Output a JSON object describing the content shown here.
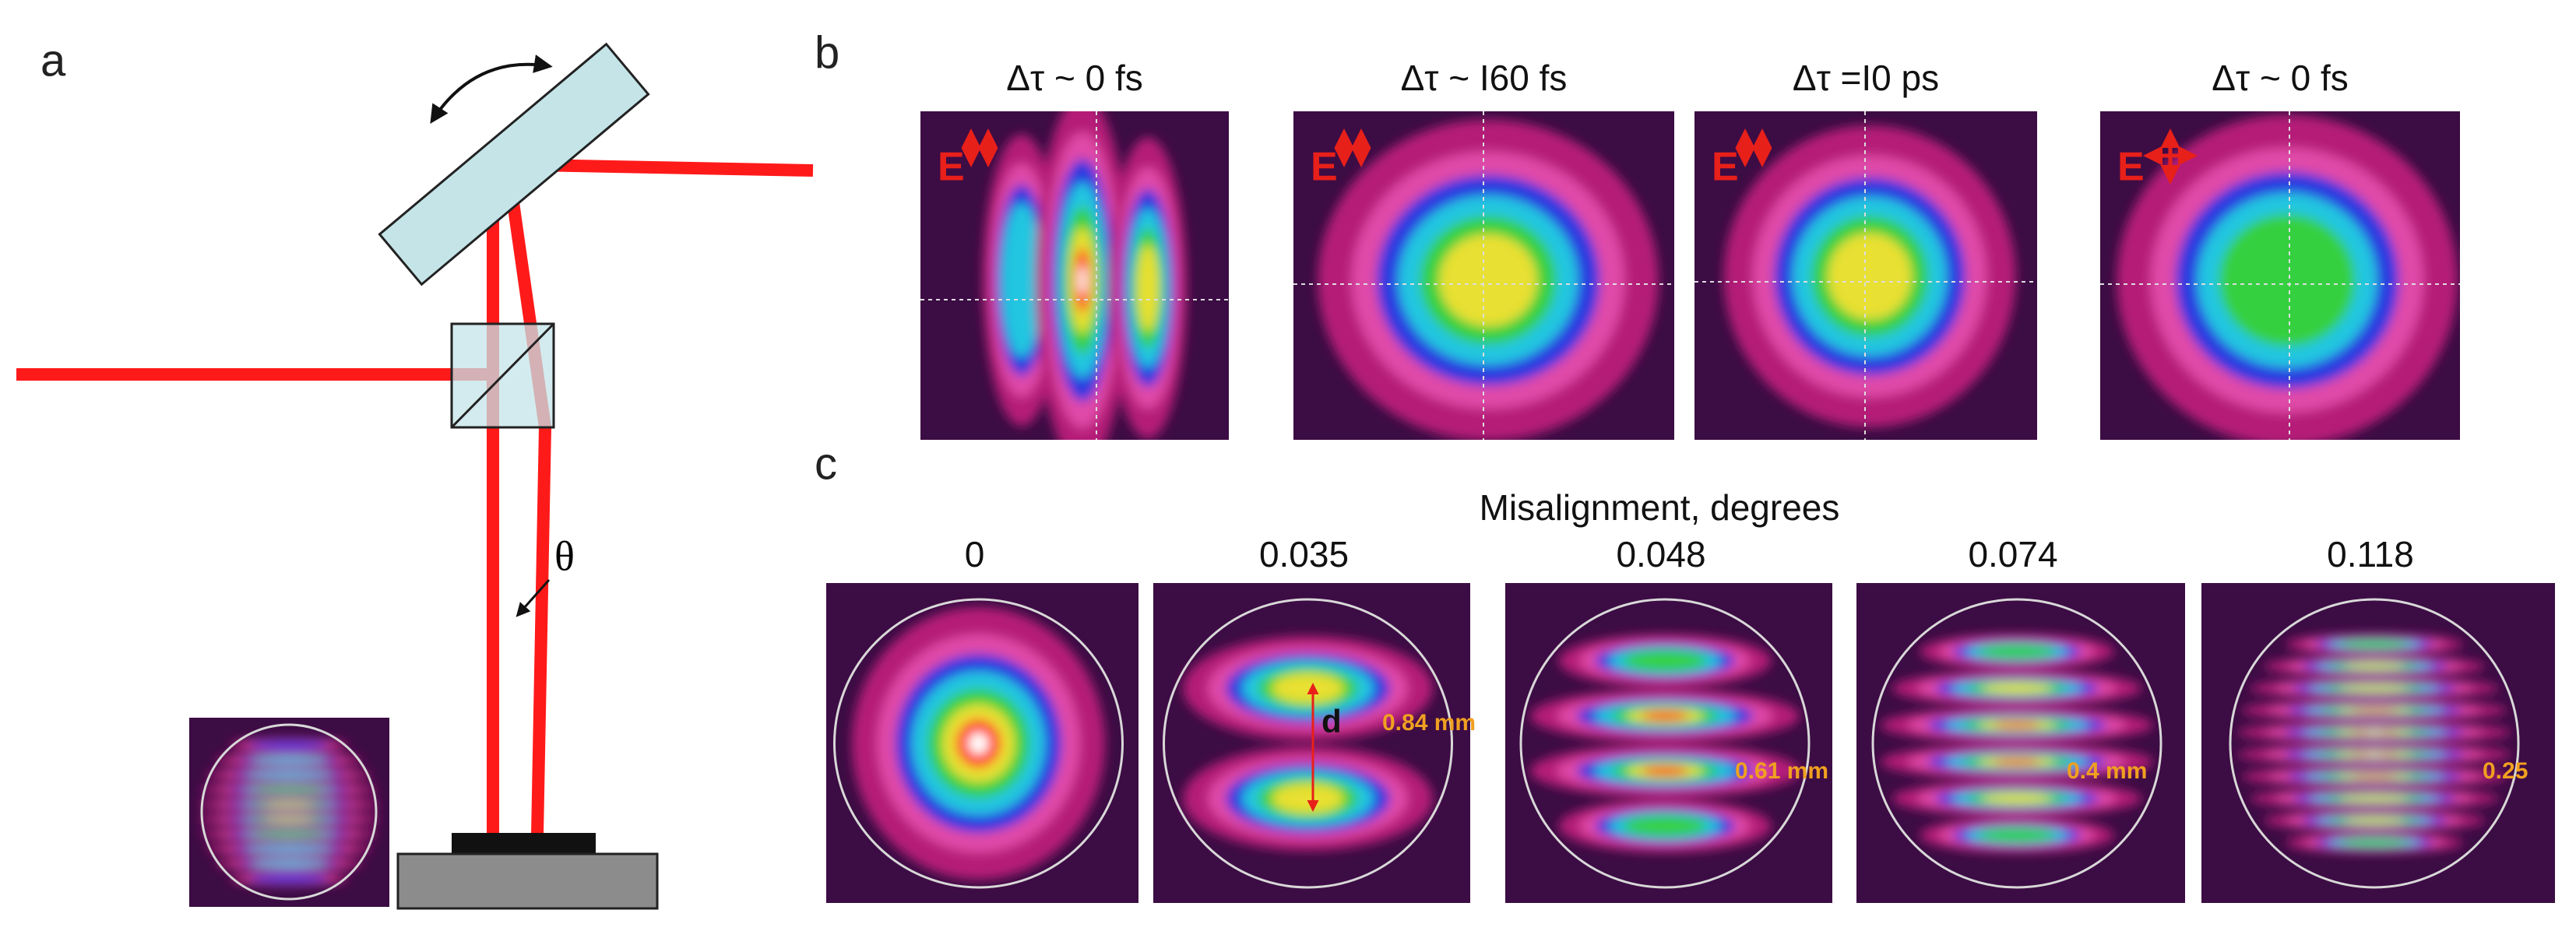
{
  "panels": {
    "a": {
      "label": "a",
      "angle": "θ"
    },
    "b": {
      "label": "b",
      "images": [
        {
          "title": "Δτ ~ 0 fs",
          "field": "E"
        },
        {
          "title": "Δτ ~ I60 fs",
          "field": "E"
        },
        {
          "title": "Δτ =I0 ps",
          "field": "E"
        },
        {
          "title": "Δτ ~ 0 fs",
          "field": "E"
        }
      ]
    },
    "c": {
      "label": "c",
      "title": "Misalignment, degrees",
      "images": [
        {
          "title": "0"
        },
        {
          "title": "0.035",
          "annotation": "0.84 mm",
          "marker": "d"
        },
        {
          "title": "0.048",
          "annotation": "0.61 mm"
        },
        {
          "title": "0.074",
          "annotation": "0.4 mm"
        },
        {
          "title": "0.118",
          "annotation": "0.25"
        }
      ]
    }
  }
}
